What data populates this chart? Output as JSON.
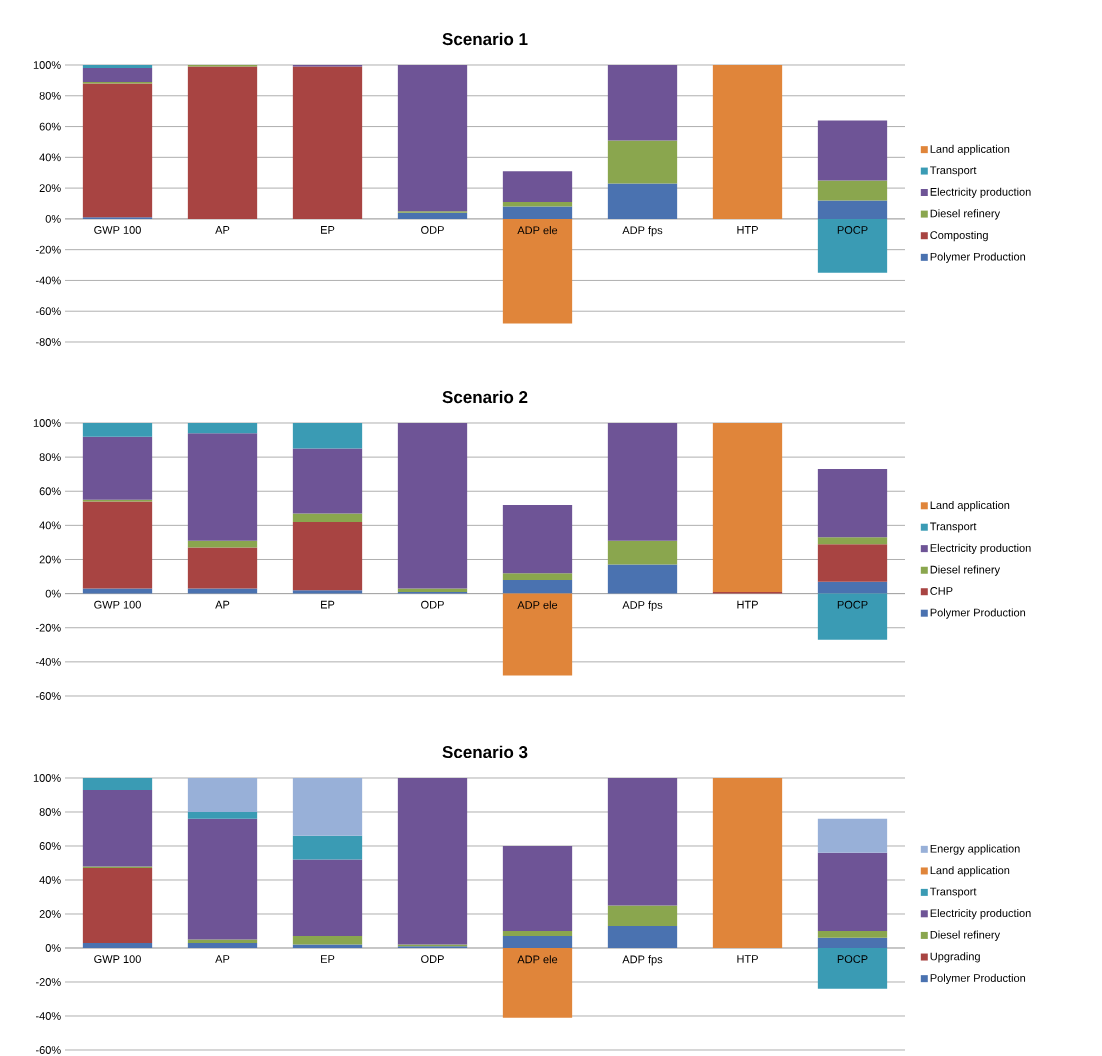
{
  "chart_data": [
    {
      "type": "bar",
      "stacked": true,
      "title": "Scenario 1",
      "categories": [
        "GWP 100",
        "AP",
        "EP",
        "ODP",
        "ADP ele",
        "ADP fps",
        "HTP",
        "POCP"
      ],
      "series": [
        {
          "name": "Polymer Production",
          "color": "#4a72b0",
          "values": [
            1,
            null,
            null,
            4,
            8,
            23,
            null,
            12
          ]
        },
        {
          "name": "Composting",
          "color": "#a84442",
          "values": [
            87,
            99,
            99,
            null,
            null,
            null,
            null,
            null
          ]
        },
        {
          "name": "Diesel refinery",
          "color": "#8aa64e",
          "values": [
            1,
            1,
            null,
            1,
            3,
            28,
            null,
            13
          ]
        },
        {
          "name": "Electricity production",
          "color": "#6e5496",
          "values": [
            9,
            null,
            1,
            95,
            20,
            49,
            null,
            39
          ]
        },
        {
          "name": "Transport",
          "color": "#3a9bb4",
          "values": [
            2,
            null,
            null,
            null,
            null,
            null,
            null,
            -35
          ]
        },
        {
          "name": "Land application",
          "color": "#e0853a",
          "values": [
            null,
            null,
            null,
            null,
            -68,
            null,
            100,
            null
          ]
        }
      ],
      "ylim": [
        -80,
        100
      ],
      "yticks": [
        {
          "value": -80,
          "label": "-80%"
        },
        {
          "value": -60,
          "label": "-60%"
        },
        {
          "value": -40,
          "label": "-40%"
        },
        {
          "value": -20,
          "label": "-20%"
        },
        {
          "value": 0,
          "label": "0%"
        },
        {
          "value": 20,
          "label": "20%"
        },
        {
          "value": 40,
          "label": "40%"
        },
        {
          "value": 60,
          "label": "60%"
        },
        {
          "value": 80,
          "label": "80%"
        },
        {
          "value": 100,
          "label": "100%"
        }
      ],
      "grid": "y",
      "legend": "right"
    },
    {
      "type": "bar",
      "stacked": true,
      "title": "Scenario 2",
      "categories": [
        "GWP 100",
        "AP",
        "EP",
        "ODP",
        "ADP ele",
        "ADP fps",
        "HTP",
        "POCP"
      ],
      "series": [
        {
          "name": "Polymer Production",
          "color": "#4a72b0",
          "values": [
            3,
            3,
            2,
            1,
            8,
            17,
            null,
            7
          ]
        },
        {
          "name": "CHP",
          "color": "#a84442",
          "values": [
            51,
            24,
            40,
            null,
            null,
            null,
            1,
            22
          ]
        },
        {
          "name": "Diesel refinery",
          "color": "#8aa64e",
          "values": [
            1,
            4,
            5,
            2,
            4,
            14,
            null,
            4
          ]
        },
        {
          "name": "Electricity production",
          "color": "#6e5496",
          "values": [
            37,
            63,
            38,
            97,
            40,
            69,
            null,
            40
          ]
        },
        {
          "name": "Transport",
          "color": "#3a9bb4",
          "values": [
            8,
            6,
            15,
            null,
            null,
            null,
            null,
            -27
          ]
        },
        {
          "name": "Land application",
          "color": "#e0853a",
          "values": [
            null,
            null,
            null,
            null,
            -48,
            null,
            99,
            null
          ]
        }
      ],
      "ylim": [
        -60,
        100
      ],
      "yticks": [
        {
          "value": -60,
          "label": "-60%"
        },
        {
          "value": -40,
          "label": "-40%"
        },
        {
          "value": -20,
          "label": "-20%"
        },
        {
          "value": 0,
          "label": "0%"
        },
        {
          "value": 20,
          "label": "20%"
        },
        {
          "value": 40,
          "label": "40%"
        },
        {
          "value": 60,
          "label": "60%"
        },
        {
          "value": 80,
          "label": "80%"
        },
        {
          "value": 100,
          "label": "100%"
        }
      ],
      "grid": "y",
      "legend": "right"
    },
    {
      "type": "bar",
      "stacked": true,
      "title": "Scenario 3",
      "categories": [
        "GWP 100",
        "AP",
        "EP",
        "ODP",
        "ADP ele",
        "ADP fps",
        "HTP",
        "POCP"
      ],
      "series": [
        {
          "name": "Polymer Production",
          "color": "#4a72b0",
          "values": [
            3,
            3,
            2,
            1,
            7,
            13,
            null,
            6
          ]
        },
        {
          "name": "Upgrading",
          "color": "#a84442",
          "values": [
            44,
            null,
            null,
            null,
            null,
            null,
            null,
            null
          ]
        },
        {
          "name": "Diesel refinery",
          "color": "#8aa64e",
          "values": [
            1,
            2,
            5,
            1,
            3,
            12,
            null,
            4
          ]
        },
        {
          "name": "Electricity production",
          "color": "#6e5496",
          "values": [
            45,
            71,
            45,
            98,
            50,
            75,
            null,
            46
          ]
        },
        {
          "name": "Transport",
          "color": "#3a9bb4",
          "values": [
            7,
            4,
            14,
            null,
            null,
            null,
            null,
            -24
          ]
        },
        {
          "name": "Land application",
          "color": "#e0853a",
          "values": [
            null,
            null,
            null,
            null,
            -41,
            null,
            100,
            null
          ]
        },
        {
          "name": "Energy application",
          "color": "#98b0d8",
          "values": [
            null,
            20,
            34,
            null,
            null,
            null,
            null,
            20
          ]
        }
      ],
      "ylim": [
        -60,
        100
      ],
      "yticks": [
        {
          "value": -60,
          "label": "-60%"
        },
        {
          "value": -40,
          "label": "-40%"
        },
        {
          "value": -20,
          "label": "-20%"
        },
        {
          "value": 0,
          "label": "0%"
        },
        {
          "value": 20,
          "label": "20%"
        },
        {
          "value": 40,
          "label": "40%"
        },
        {
          "value": 60,
          "label": "60%"
        },
        {
          "value": 80,
          "label": "80%"
        },
        {
          "value": 100,
          "label": "100%"
        }
      ],
      "grid": "y",
      "legend": "right"
    }
  ]
}
